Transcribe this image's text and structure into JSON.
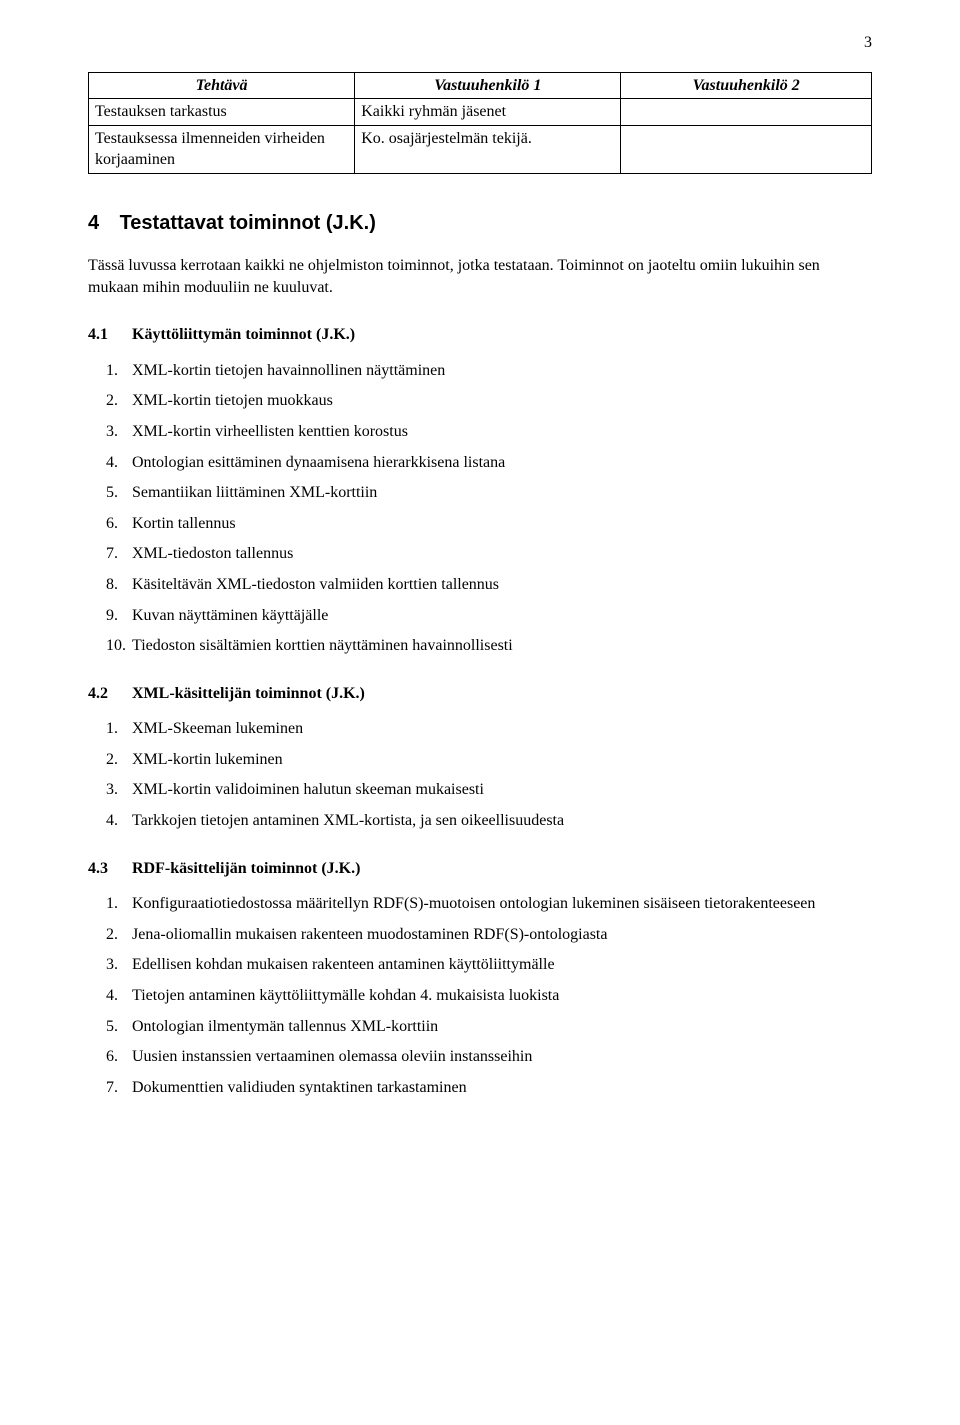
{
  "page_number": "3",
  "table": {
    "headers": [
      "Tehtävä",
      "Vastuuhenkilö 1",
      "Vastuuhenkilö 2"
    ],
    "rows": [
      [
        "Testauksen tarkastus",
        "Kaikki ryhmän jäsenet",
        ""
      ],
      [
        "Testauksessa ilmenneiden virheiden korjaaminen",
        "Ko. osajärjestelmän tekijä.",
        ""
      ]
    ]
  },
  "section4": {
    "number": "4",
    "title": "Testattavat toiminnot (J.K.)",
    "intro": "Tässä luvussa kerrotaan kaikki ne ohjelmiston toiminnot, jotka testataan. Toiminnot on jaoteltu omiin lukuihin sen mukaan mihin moduuliin ne kuuluvat."
  },
  "sub41": {
    "number": "4.1",
    "title": "Käyttöliittymän toiminnot (J.K.)",
    "items": [
      "XML-kortin tietojen havainnollinen näyttäminen",
      "XML-kortin tietojen muokkaus",
      "XML-kortin virheellisten kenttien korostus",
      "Ontologian esittäminen dynaamisena hierarkkisena listana",
      "Semantiikan liittäminen XML-korttiin",
      "Kortin tallennus",
      "XML-tiedoston tallennus",
      "Käsiteltävän XML-tiedoston valmiiden korttien tallennus",
      "Kuvan näyttäminen käyttäjälle",
      "Tiedoston sisältämien korttien näyttäminen havainnollisesti"
    ]
  },
  "sub42": {
    "number": "4.2",
    "title": "XML-käsittelijän toiminnot (J.K.)",
    "items": [
      "XML-Skeeman lukeminen",
      "XML-kortin lukeminen",
      "XML-kortin validoiminen halutun skeeman mukaisesti",
      "Tarkkojen tietojen antaminen XML-kortista, ja sen oikeellisuudesta"
    ]
  },
  "sub43": {
    "number": "4.3",
    "title": "RDF-käsittelijän toiminnot (J.K.)",
    "items": [
      "Konfiguraatiotiedostossa määritellyn RDF(S)-muotoisen ontologian lukeminen sisäiseen tietorakenteeseen",
      "Jena-oliomallin mukaisen rakenteen muodostaminen RDF(S)-ontologiasta",
      "Edellisen kohdan mukaisen rakenteen antaminen käyttöliittymälle",
      "Tietojen antaminen käyttöliittymälle kohdan 4. mukaisista luokista",
      "Ontologian ilmentymän tallennus XML-korttiin",
      "Uusien instanssien vertaaminen olemassa oleviin instansseihin",
      "Dokumenttien validiuden syntaktinen tarkastaminen"
    ]
  }
}
